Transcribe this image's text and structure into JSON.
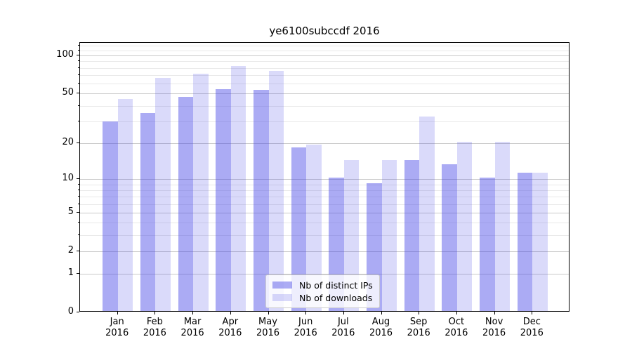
{
  "title": "ye6100subccdf 2016",
  "chart_data": {
    "type": "bar",
    "title": "ye6100subccdf 2016",
    "categories": [
      "Jan 2016",
      "Feb 2016",
      "Mar 2016",
      "Apr 2016",
      "May 2016",
      "Jun 2016",
      "Jul 2016",
      "Aug 2016",
      "Sep 2016",
      "Oct 2016",
      "Nov 2016",
      "Dec 2016"
    ],
    "x_tick_line1": [
      "Jan",
      "Feb",
      "Mar",
      "Apr",
      "May",
      "Jun",
      "Jul",
      "Aug",
      "Sep",
      "Oct",
      "Nov",
      "Dec"
    ],
    "x_tick_line2": [
      "2016",
      "2016",
      "2016",
      "2016",
      "2016",
      "2016",
      "2016",
      "2016",
      "2016",
      "2016",
      "2016",
      "2016"
    ],
    "series": [
      {
        "name": "Nb of distinct IPs",
        "color": "rgba(68,68,230,0.45)",
        "solid_equivalent": "#a7a7f3",
        "values": [
          29,
          34,
          46,
          53,
          52,
          18,
          10,
          9,
          14,
          13,
          10,
          11
        ]
      },
      {
        "name": "Nb of downloads",
        "color": "rgba(68,68,230,0.2)",
        "solid_equivalent": "#d8d8fa",
        "values": [
          44,
          65,
          70,
          81,
          74,
          19,
          14,
          14,
          32,
          20,
          20,
          11
        ]
      }
    ],
    "yscale": "log1p",
    "ylim": [
      0,
      126
    ],
    "y_major_ticks": [
      0,
      1,
      2,
      5,
      10,
      20,
      50,
      100
    ],
    "y_minor_ticks": [
      3,
      4,
      6,
      7,
      8,
      9,
      30,
      40,
      60,
      70,
      80,
      90,
      110,
      120
    ],
    "grid": true,
    "legend_position": "lower center",
    "colors": {
      "major_grid": "#c9c9c9",
      "minor_grid": "#e9e9e9",
      "spine": "#000000"
    }
  }
}
